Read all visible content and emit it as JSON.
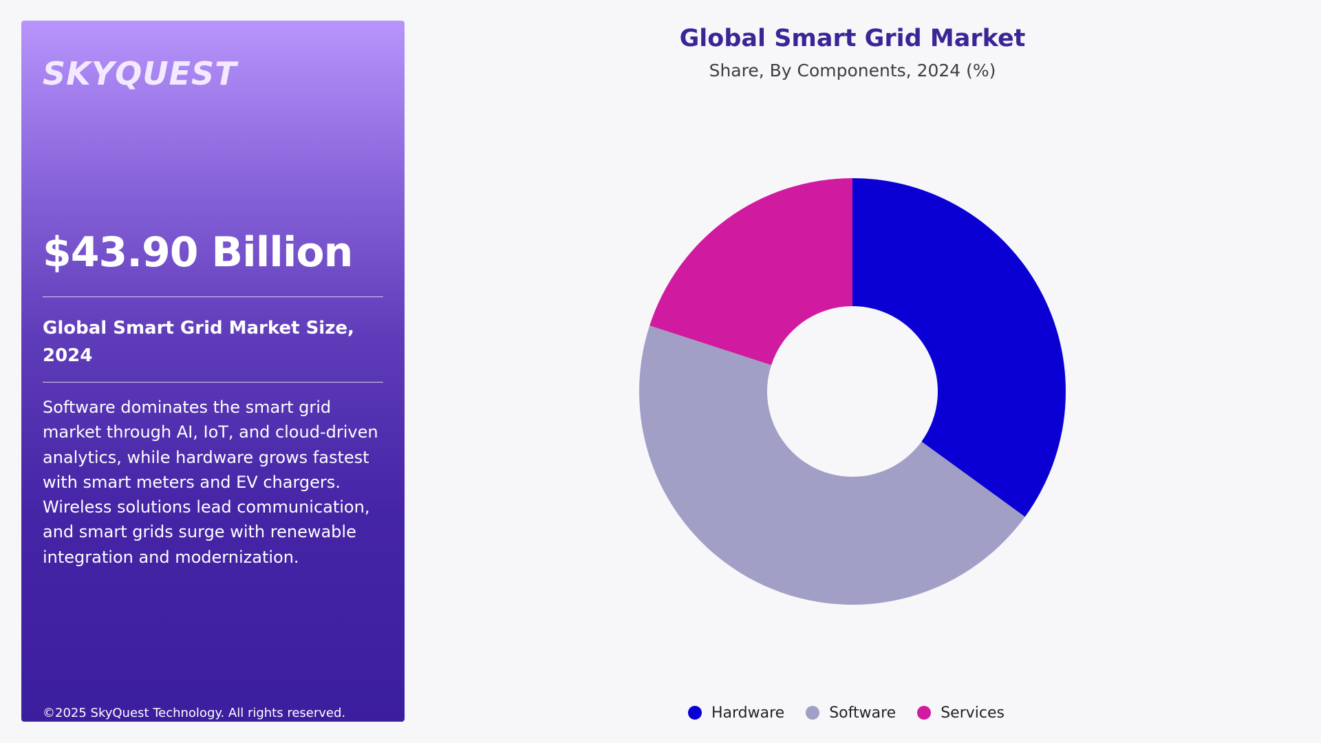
{
  "brand": {
    "logo_text": "SKYQUEST"
  },
  "panel": {
    "market_value": "$43.90 Billion",
    "size_label": "Global Smart Grid Market Size, 2024",
    "description": "Software dominates the smart grid market through AI, IoT, and cloud-driven analytics, while hardware grows fastest with smart meters and EV chargers. Wireless solutions lead communication, and smart grids surge with renewable integration and modernization.",
    "copyright": "©2025 SkyQuest Technology. All rights reserved."
  },
  "chart_data": {
    "type": "pie",
    "title": "Global Smart Grid Market",
    "subtitle": "Share, By Components, 2024 (%)",
    "donut": true,
    "legend_position": "bottom",
    "categories": [
      "Hardware",
      "Software",
      "Services"
    ],
    "values": [
      35,
      45,
      20
    ],
    "colors": [
      "#0a00d4",
      "#a19fc6",
      "#d01aa0"
    ]
  },
  "colors": {
    "title": "#3b2596",
    "panel_top": "#b795fb",
    "panel_bottom": "#3b1e9e",
    "background": "#f7f7fa"
  }
}
